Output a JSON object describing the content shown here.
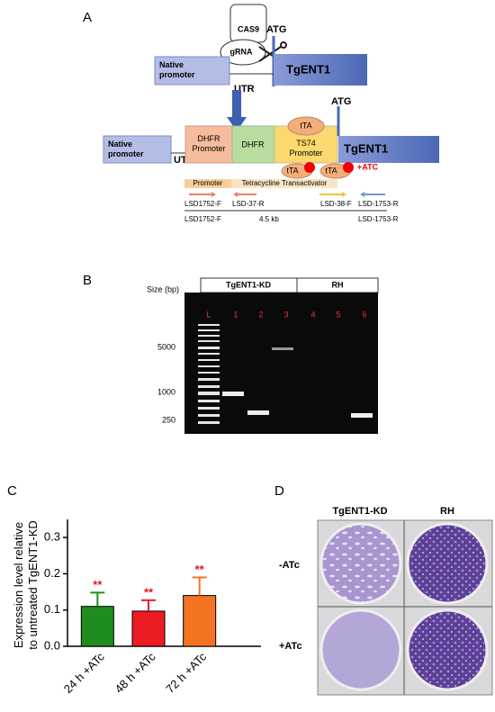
{
  "panel_a": {
    "label": "A",
    "cas9": "CAS9",
    "grna": "gRNA",
    "atg_top": "ATG",
    "native_promoter_top": [
      "Native",
      "promoter"
    ],
    "utr_top": "UTR",
    "gene_top": "TgENT1",
    "atg_bottom": "ATG",
    "tta_top": "tTA",
    "native_promoter_bottom": [
      "Native",
      "promoter"
    ],
    "utr_bottom": "UTR",
    "dhfr_promoter": [
      "DHFR",
      "Promoter"
    ],
    "dhfr": "DHFR",
    "ts74_promoter": [
      "TS74",
      "Promoter"
    ],
    "gene_bottom": "TgENT1",
    "tta_left": "tTA",
    "tta_right": "tTA",
    "atc": "+ATC",
    "promoter": "Promoter",
    "transactivator": "Tetracycline Transactivator",
    "primers": [
      "LSD1752-F",
      "LSD-37-R",
      "LSD-38-F",
      "LSD-1753-R"
    ],
    "amplicon": [
      "LSD1752-F",
      "4.5 kb",
      "LSD-1753-R"
    ]
  },
  "panel_b": {
    "label": "B",
    "size_label": "Size (bp)",
    "groups": [
      "TgENT1-KD",
      "RH"
    ],
    "lanes": [
      "L",
      "1",
      "2",
      "3",
      "4",
      "5",
      "6"
    ],
    "sizes": [
      "5000",
      "1000",
      "250"
    ]
  },
  "chart_data": {
    "type": "bar",
    "label": "C",
    "ylabel": [
      "Expression level relative",
      "to untreated TgENT1-KD"
    ],
    "categories": [
      "24 h +ATc",
      "48 h +ATc",
      "72 h +ATc"
    ],
    "values": [
      0.11,
      0.097,
      0.14
    ],
    "errors": [
      0.038,
      0.03,
      0.05
    ],
    "colors": [
      "#1e8c1e",
      "#ec1c24",
      "#f47321"
    ],
    "annotations": [
      "**",
      "**",
      "**"
    ],
    "ylim": [
      0,
      0.35
    ],
    "yticks": [
      {
        "value": 0,
        "label": "0.0"
      },
      0.1,
      0.2,
      0.3
    ]
  },
  "panel_d": {
    "label": "D",
    "columns": [
      "TgENT1-KD",
      "RH"
    ],
    "rows": [
      "-ATc",
      "+ATc"
    ]
  }
}
